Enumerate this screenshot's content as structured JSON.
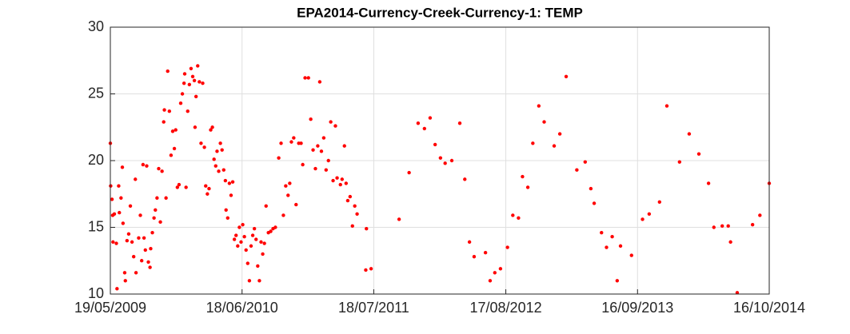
{
  "chart_data": {
    "type": "scatter",
    "title": "EPA2014-Currency-Creek-Currency-1: TEMP",
    "color": "#ff0000",
    "grid": true,
    "xlim": [
      "19/05/2009",
      "16/10/2014"
    ],
    "xticks": [
      "19/05/2009",
      "18/06/2010",
      "18/07/2011",
      "17/08/2012",
      "16/09/2013",
      "16/10/2014"
    ],
    "ylim": [
      10,
      30
    ],
    "yticks": [
      10,
      15,
      20,
      25,
      30
    ],
    "x": [
      "19/05/2009",
      "20/05/2009",
      "24/05/2009",
      "26/05/2009",
      "27/05/2009",
      "31/05/2009",
      "06/06/2009",
      "08/06/2009",
      "13/06/2009",
      "15/06/2009",
      "20/06/2009",
      "24/06/2009",
      "26/06/2009",
      "01/07/2009",
      "03/07/2009",
      "08/07/2009",
      "13/07/2009",
      "18/07/2009",
      "23/07/2009",
      "28/07/2009",
      "02/08/2009",
      "04/08/2009",
      "12/08/2009",
      "17/08/2009",
      "21/08/2009",
      "25/08/2009",
      "28/08/2009",
      "01/09/2009",
      "05/09/2009",
      "10/09/2009",
      "15/09/2009",
      "17/09/2009",
      "22/09/2009",
      "27/09/2009",
      "01/10/2009",
      "06/10/2009",
      "11/10/2009",
      "16/10/2009",
      "21/10/2009",
      "26/10/2009",
      "28/10/2009",
      "02/11/2009",
      "07/11/2009",
      "12/11/2009",
      "17/11/2009",
      "22/11/2009",
      "27/11/2009",
      "01/12/2009",
      "06/12/2009",
      "11/12/2009",
      "16/12/2009",
      "21/12/2009",
      "26/12/2009",
      "28/12/2009",
      "01/01/2010",
      "06/01/2010",
      "11/01/2010",
      "16/01/2010",
      "21/01/2010",
      "26/01/2010",
      "28/01/2010",
      "31/01/2010",
      "05/02/2010",
      "10/02/2010",
      "15/02/2010",
      "20/02/2010",
      "25/02/2010",
      "01/03/2010",
      "06/03/2010",
      "11/03/2010",
      "16/03/2010",
      "21/03/2010",
      "26/03/2010",
      "31/03/2010",
      "04/04/2010",
      "09/04/2010",
      "14/04/2010",
      "19/04/2010",
      "24/04/2010",
      "29/04/2010",
      "01/05/2010",
      "06/05/2010",
      "11/05/2010",
      "16/05/2010",
      "21/05/2010",
      "26/05/2010",
      "31/05/2010",
      "05/06/2010",
      "10/06/2010",
      "15/06/2010",
      "20/06/2010",
      "25/06/2010",
      "30/06/2010",
      "05/07/2010",
      "10/07/2010",
      "15/07/2010",
      "20/07/2010",
      "25/07/2010",
      "30/07/2010",
      "04/08/2010",
      "09/08/2010",
      "14/08/2010",
      "19/08/2010",
      "24/08/2010",
      "29/08/2010",
      "05/09/2010",
      "12/09/2010",
      "19/09/2010",
      "26/09/2010",
      "06/10/2010",
      "13/10/2010",
      "20/10/2010",
      "27/10/2010",
      "03/11/2010",
      "08/11/2010",
      "13/11/2010",
      "20/11/2010",
      "27/11/2010",
      "05/12/2010",
      "12/12/2010",
      "17/12/2010",
      "24/12/2010",
      "03/01/2011",
      "10/01/2011",
      "17/01/2011",
      "24/01/2011",
      "31/01/2011",
      "06/02/2011",
      "11/02/2011",
      "18/02/2011",
      "25/02/2011",
      "04/03/2011",
      "11/03/2011",
      "18/03/2011",
      "25/03/2011",
      "30/03/2011",
      "09/04/2011",
      "14/04/2011",
      "21/04/2011",
      "26/04/2011",
      "01/05/2011",
      "08/05/2011",
      "15/05/2011",
      "22/05/2011",
      "29/05/2011",
      "24/06/2011",
      "26/06/2011",
      "10/07/2011",
      "02/10/2011",
      "01/11/2011",
      "28/11/2011",
      "17/12/2011",
      "03/01/2012",
      "18/01/2012",
      "03/02/2012",
      "17/02/2012",
      "08/03/2012",
      "01/04/2012",
      "16/04/2012",
      "30/04/2012",
      "14/05/2012",
      "17/06/2012",
      "01/07/2012",
      "15/07/2012",
      "01/08/2012",
      "22/08/2012",
      "07/09/2012",
      "24/09/2012",
      "06/10/2012",
      "22/10/2012",
      "06/11/2012",
      "24/11/2012",
      "10/12/2012",
      "09/01/2013",
      "26/01/2013",
      "14/02/2013",
      "18/03/2013",
      "12/04/2013",
      "29/04/2013",
      "09/05/2013",
      "31/05/2013",
      "15/06/2013",
      "02/07/2013",
      "17/07/2013",
      "27/07/2013",
      "29/08/2013",
      "01/10/2013",
      "21/10/2013",
      "21/11/2013",
      "13/12/2013",
      "20/01/2014",
      "18/02/2014",
      "19/03/2014",
      "17/04/2014",
      "03/05/2014",
      "28/05/2014",
      "15/06/2014",
      "22/06/2014",
      "12/07/2014",
      "27/08/2014",
      "18/09/2014",
      "16/10/2014"
    ],
    "values": [
      21.3,
      18.1,
      17.1,
      15.9,
      13.9,
      16.0,
      13.8,
      10.4,
      18.1,
      16.1,
      17.2,
      19.5,
      15.3,
      11.6,
      11.0,
      14.0,
      14.5,
      16.6,
      13.9,
      12.8,
      18.6,
      11.6,
      14.2,
      15.9,
      12.5,
      19.7,
      14.2,
      13.3,
      19.6,
      12.4,
      12.0,
      13.4,
      14.6,
      15.7,
      16.3,
      17.2,
      19.4,
      15.4,
      19.2,
      22.9,
      23.8,
      17.2,
      26.7,
      23.7,
      20.4,
      22.2,
      20.9,
      22.3,
      18.0,
      18.2,
      24.3,
      25.0,
      25.8,
      26.5,
      18.0,
      23.7,
      25.7,
      26.9,
      26.3,
      26.0,
      22.5,
      24.8,
      27.1,
      25.9,
      21.3,
      25.8,
      21.0,
      18.1,
      17.5,
      17.9,
      22.3,
      22.5,
      20.1,
      19.6,
      20.7,
      19.2,
      21.3,
      20.8,
      19.3,
      18.5,
      16.3,
      15.7,
      18.3,
      17.4,
      18.4,
      14.1,
      14.4,
      13.6,
      15.0,
      13.9,
      15.2,
      14.3,
      13.3,
      12.3,
      11.0,
      13.6,
      14.4,
      14.9,
      14.1,
      12.1,
      11.0,
      13.9,
      13.0,
      13.8,
      16.6,
      14.6,
      14.7,
      14.9,
      15.0,
      20.2,
      21.3,
      15.9,
      18.1,
      17.4,
      18.3,
      21.4,
      21.7,
      16.7,
      21.3,
      21.3,
      19.7,
      26.2,
      26.2,
      23.1,
      20.8,
      19.4,
      21.1,
      25.9,
      20.7,
      21.7,
      19.3,
      20.0,
      22.9,
      18.5,
      22.6,
      18.7,
      18.2,
      18.6,
      21.1,
      18.3,
      17.0,
      17.3,
      15.1,
      16.6,
      16.0,
      11.8,
      14.9,
      11.9,
      15.6,
      19.1,
      22.8,
      22.4,
      23.2,
      21.2,
      20.2,
      19.8,
      20.0,
      22.8,
      18.6,
      13.9,
      12.8,
      13.1,
      11.0,
      11.6,
      11.9,
      13.5,
      15.9,
      15.7,
      18.8,
      18.0,
      21.3,
      24.1,
      22.9,
      21.1,
      22.0,
      26.3,
      19.3,
      19.9,
      17.9,
      16.8,
      14.6,
      13.5,
      14.3,
      11.0,
      13.6,
      12.9,
      15.6,
      16.0,
      16.9,
      24.1,
      19.9,
      22.0,
      20.5,
      18.3,
      15.0,
      15.1,
      15.1,
      13.9,
      10.1,
      15.2,
      15.9,
      18.3
    ]
  }
}
